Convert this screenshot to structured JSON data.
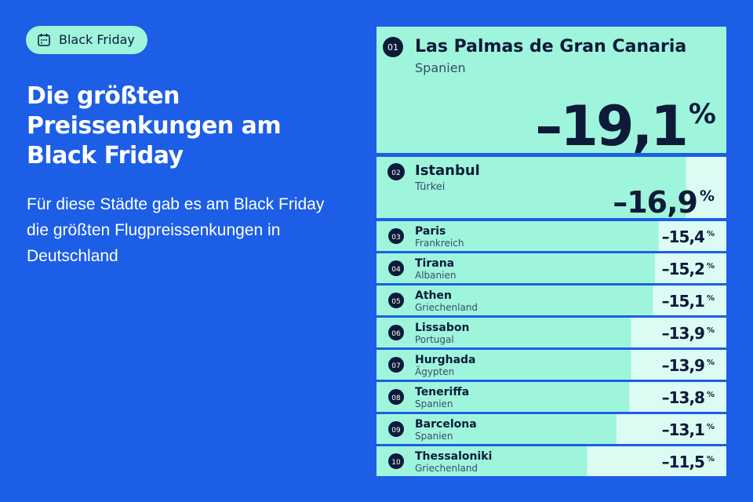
{
  "badge": "Black Friday",
  "chart_data": {
    "type": "bar",
    "title": "Die größten Preissenkungen am Black Friday",
    "subtitle": "Für diese Städte gab es am Black Friday die größten Flugpreissenkungen in Deutschland",
    "ranks": [
      "01",
      "02",
      "03",
      "04",
      "05",
      "06",
      "07",
      "08",
      "09",
      "10"
    ],
    "categories": [
      "Las Palmas de Gran Canaria",
      "Istanbul",
      "Paris",
      "Tirana",
      "Athen",
      "Lissabon",
      "Hurghada",
      "Teneriffa",
      "Barcelona",
      "Thessaloniki"
    ],
    "countries": [
      "Spanien",
      "Türkei",
      "Frankreich",
      "Albanien",
      "Griechenland",
      "Portugal",
      "Ägypten",
      "Spanien",
      "Spanien",
      "Griechenland"
    ],
    "values": [
      -19.1,
      -16.9,
      -15.4,
      -15.2,
      -15.1,
      -13.9,
      -13.9,
      -13.8,
      -13.1,
      -11.5
    ],
    "value_labels": [
      "–19,1%",
      "–16,9%",
      "–15,4%",
      "–15,2%",
      "–15,1%",
      "–13,9%",
      "–13,9%",
      "–13,8%",
      "–13,1%",
      "–11,5%"
    ],
    "color": "#9ef5db"
  }
}
